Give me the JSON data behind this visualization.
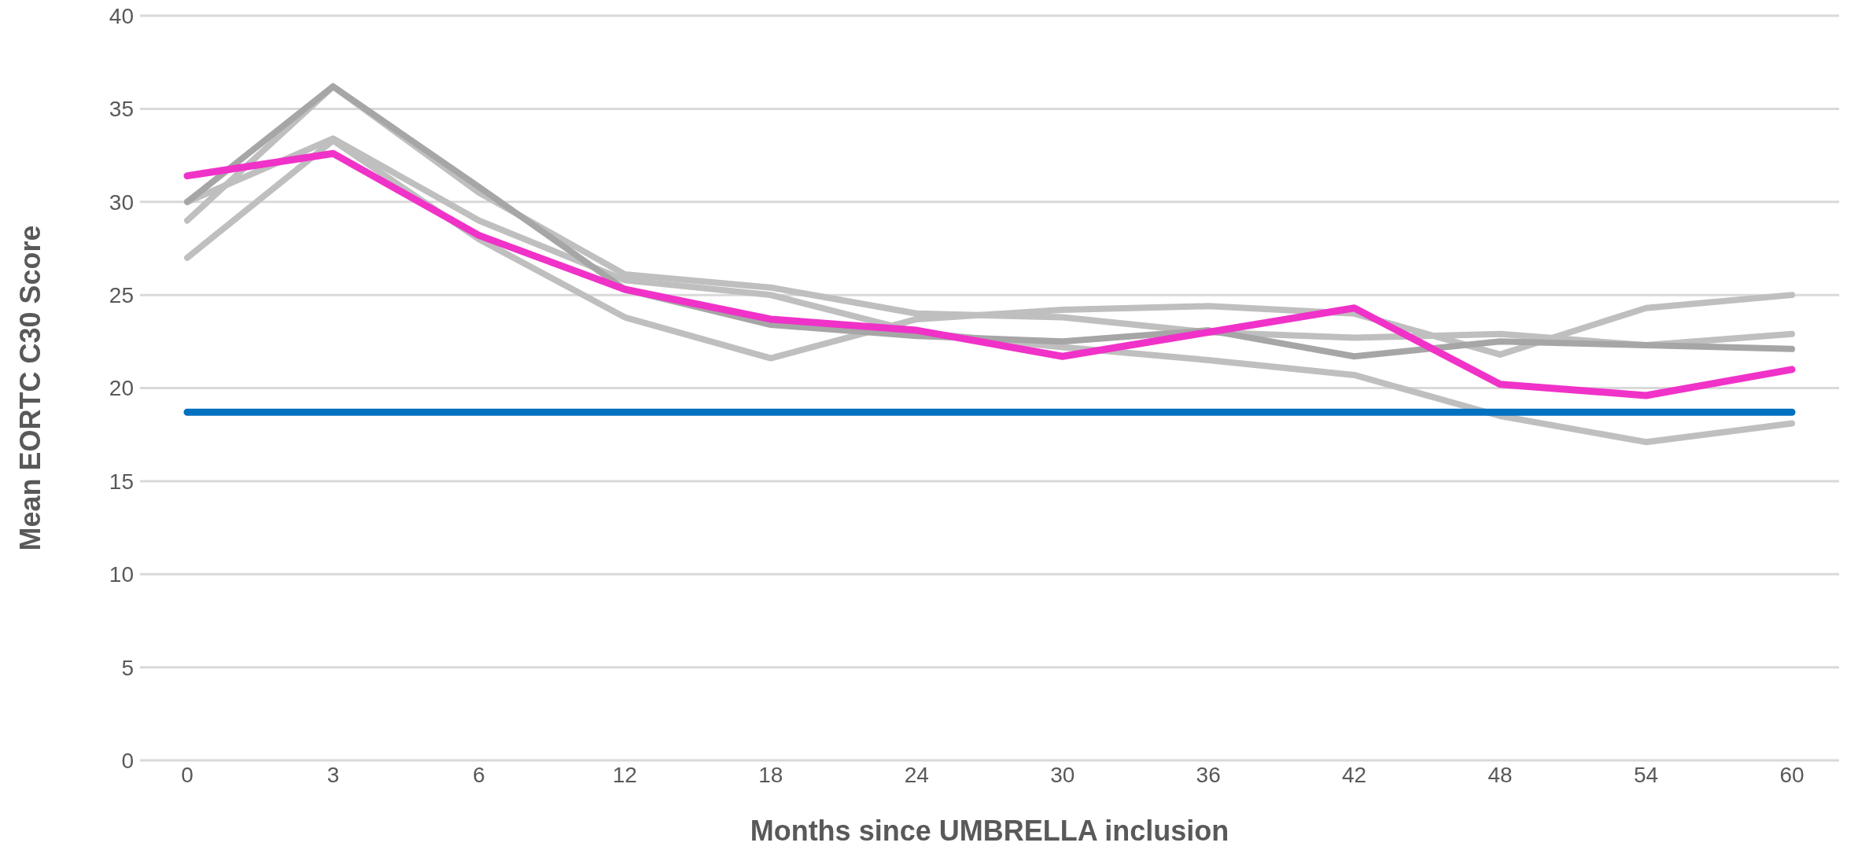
{
  "chart_data": {
    "type": "line",
    "xlabel": "Months since UMBRELLA inclusion",
    "ylabel": "Mean EORTC C30 Score",
    "categories": [
      "0",
      "3",
      "6",
      "12",
      "18",
      "24",
      "30",
      "36",
      "42",
      "48",
      "54",
      "60"
    ],
    "series": [
      {
        "color": "#bfbfbf",
        "values": [
          27,
          33.3,
          28,
          23.8,
          21.6,
          23.7,
          24.2,
          24.4,
          24,
          21.8,
          24.3,
          25
        ]
      },
      {
        "color": "#bfbfbf",
        "values": [
          30,
          33.4,
          29,
          25.8,
          25,
          23,
          22.2,
          21.5,
          20.7,
          18.5,
          17.1,
          18.1
        ]
      },
      {
        "color": "#bfbfbf",
        "values": [
          29,
          36.2,
          30.5,
          26.1,
          25.4,
          24,
          23.8,
          23,
          22.7,
          22.9,
          22.3,
          22.9
        ]
      },
      {
        "color": "#a6a6a6",
        "values": [
          30,
          36.2,
          30.8,
          25.3,
          23.4,
          22.8,
          22.5,
          23.1,
          21.7,
          22.5,
          22.3,
          22.1
        ]
      },
      {
        "color": "#f032c8",
        "values": [
          31.4,
          32.6,
          28.2,
          25.3,
          23.7,
          23.1,
          21.7,
          23,
          24.3,
          20.2,
          19.6,
          21
        ]
      },
      {
        "color": "#0070c0",
        "values": [
          18.7,
          18.7,
          18.7,
          18.7,
          18.7,
          18.7,
          18.7,
          18.7,
          18.7,
          18.7,
          18.7,
          18.7
        ]
      }
    ],
    "ylim": [
      0,
      40
    ],
    "yticks": [
      0,
      5,
      10,
      15,
      20,
      25,
      30,
      35,
      40
    ],
    "grid": "y",
    "legend": false,
    "marker": "none",
    "line_style": "solid"
  }
}
